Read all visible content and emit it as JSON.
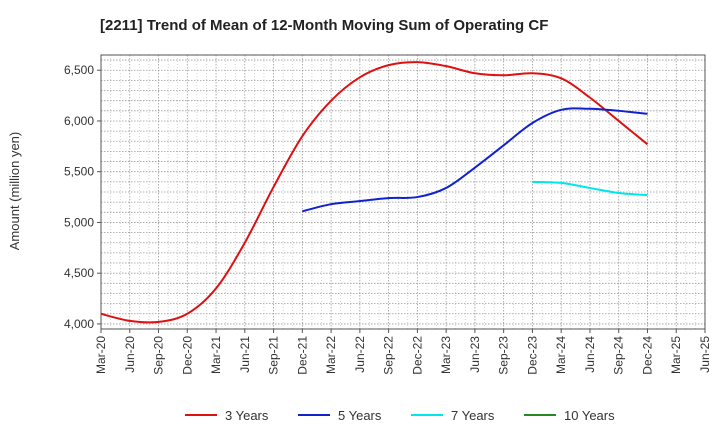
{
  "chart_data": {
    "type": "line",
    "title": "[2211]  Trend of Mean of 12-Month Moving Sum of Operating CF",
    "ylabel": "Amount (million yen)",
    "xlabel": "",
    "ylim": [
      3950,
      6650
    ],
    "yticks": [
      4000,
      4500,
      5000,
      5500,
      6000,
      6500
    ],
    "ytick_labels": [
      "4,000",
      "4,500",
      "5,000",
      "5,500",
      "6,000",
      "6,500"
    ],
    "categories": [
      "Mar-20",
      "Jun-20",
      "Sep-20",
      "Dec-20",
      "Mar-21",
      "Jun-21",
      "Sep-21",
      "Dec-21",
      "Mar-22",
      "Jun-22",
      "Sep-22",
      "Dec-22",
      "Mar-23",
      "Jun-23",
      "Sep-23",
      "Dec-23",
      "Mar-24",
      "Jun-24",
      "Sep-24",
      "Dec-24",
      "Mar-25",
      "Jun-25"
    ],
    "grid": true,
    "legend_position": "bottom",
    "series": [
      {
        "name": "3 Years",
        "color": "#dd1111",
        "values": [
          4100,
          4030,
          4020,
          4100,
          4350,
          4800,
          5350,
          5850,
          6200,
          6430,
          6550,
          6580,
          6540,
          6470,
          6450,
          6470,
          6420,
          6230,
          6000,
          5770,
          null,
          null
        ]
      },
      {
        "name": "5 Years",
        "color": "#1122cc",
        "values": [
          null,
          null,
          null,
          null,
          null,
          null,
          null,
          5110,
          5180,
          5210,
          5240,
          5250,
          5340,
          5540,
          5760,
          5980,
          6110,
          6120,
          6100,
          6070,
          null,
          null
        ]
      },
      {
        "name": "7 Years",
        "color": "#00e5ee",
        "values": [
          null,
          null,
          null,
          null,
          null,
          null,
          null,
          null,
          null,
          null,
          null,
          null,
          null,
          null,
          null,
          5400,
          5390,
          5340,
          5290,
          5270,
          null,
          null
        ]
      },
      {
        "name": "10 Years",
        "color": "#228b22",
        "values": [
          null,
          null,
          null,
          null,
          null,
          null,
          null,
          null,
          null,
          null,
          null,
          null,
          null,
          null,
          null,
          null,
          null,
          null,
          null,
          null,
          null,
          null
        ]
      }
    ]
  }
}
